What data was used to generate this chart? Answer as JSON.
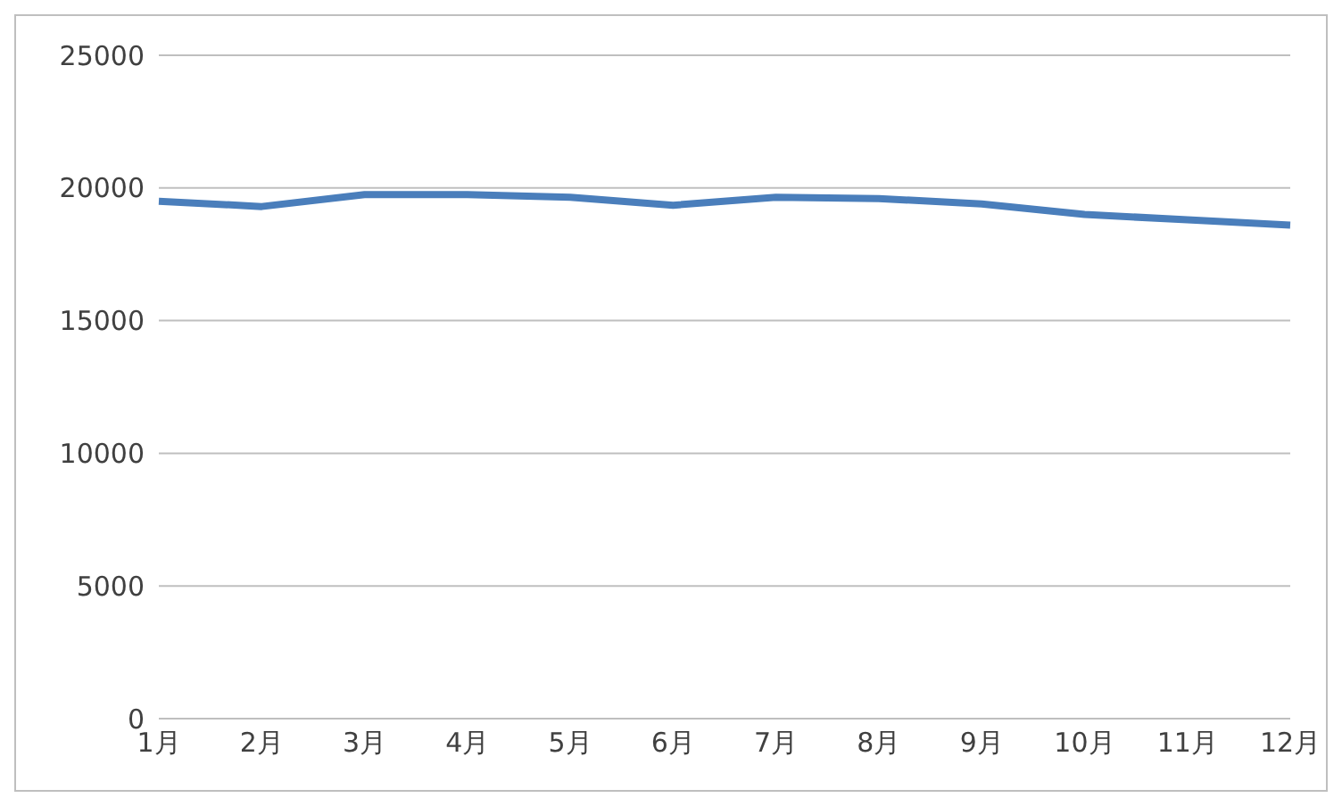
{
  "chart_data": {
    "type": "line",
    "categories": [
      "1月",
      "2月",
      "3月",
      "4月",
      "5月",
      "6月",
      "7月",
      "8月",
      "9月",
      "10月",
      "11月",
      "12月"
    ],
    "series": [
      {
        "color": "#4a7ebb",
        "values": [
          19500,
          19300,
          19750,
          19750,
          19650,
          19350,
          19650,
          19600,
          19400,
          19000,
          18800,
          18600
        ]
      }
    ],
    "ylim": [
      0,
      25000
    ],
    "yticks": [
      0,
      5000,
      10000,
      15000,
      20000,
      25000
    ],
    "grid": "y",
    "legend": false,
    "marker": "none",
    "line_style": "solid"
  }
}
